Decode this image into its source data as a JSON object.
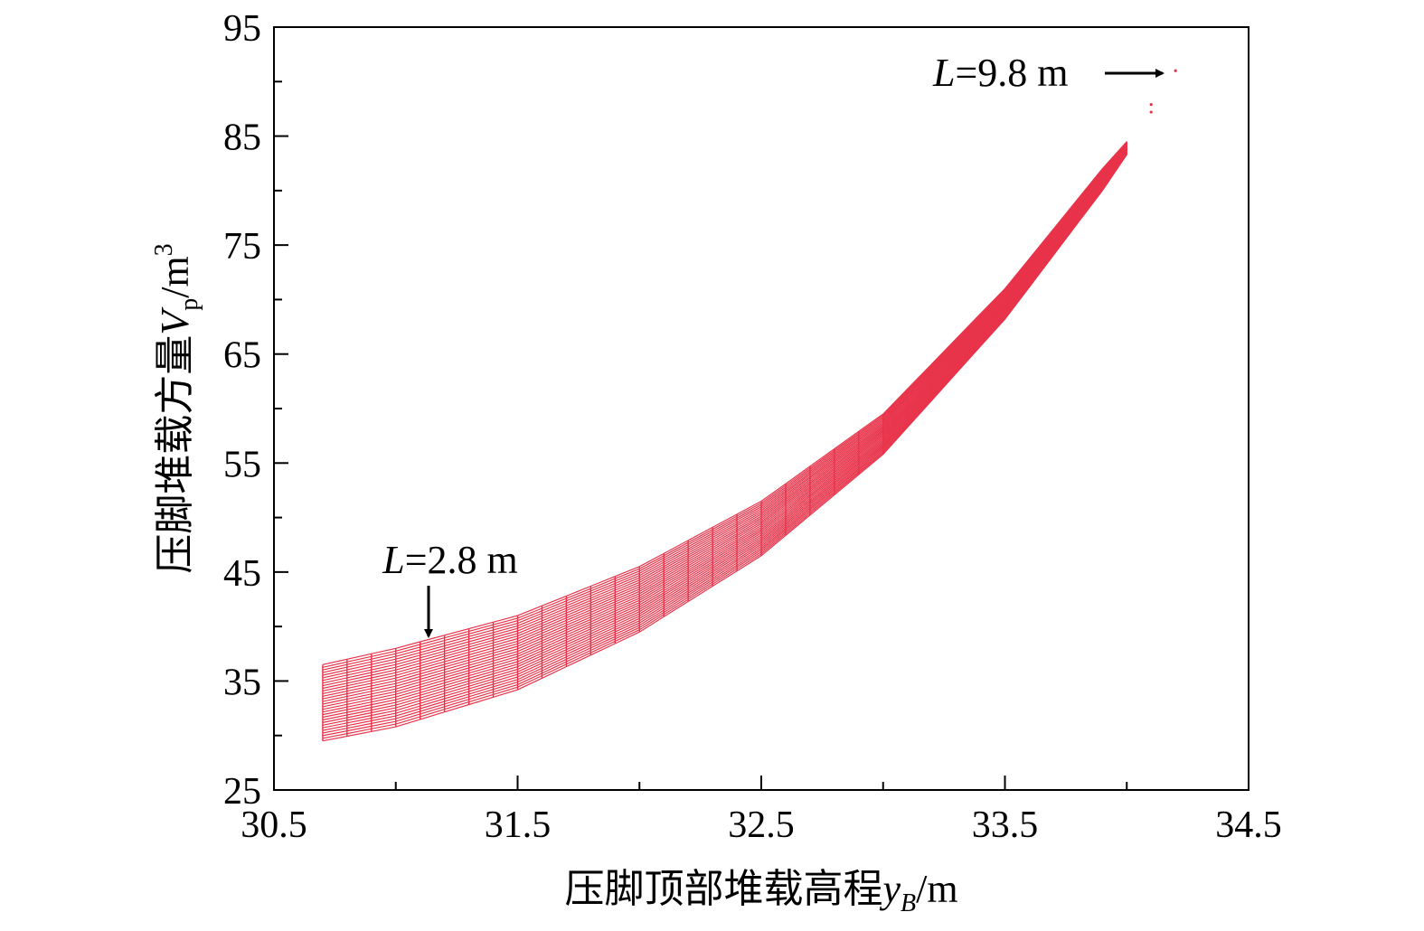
{
  "chart_data": {
    "type": "line",
    "x_axis": {
      "label_cn": "压脚顶部堆载高程",
      "label_var": "y",
      "label_sub": "B",
      "label_unit": "/m",
      "range": [
        30.5,
        34.5
      ],
      "ticks": [
        "30.5",
        "31.5",
        "32.5",
        "33.5",
        "34.5"
      ]
    },
    "y_axis": {
      "label_cn": "压脚堆载方量",
      "label_var": "V",
      "label_sub": "p",
      "label_unit": "/m",
      "label_sup": "3",
      "range": [
        25,
        95
      ],
      "ticks": [
        "25",
        "35",
        "45",
        "55",
        "65",
        "75",
        "85",
        "95"
      ]
    },
    "grid": false,
    "line_color": "#e8334a",
    "series_summary": {
      "x_start": 30.7,
      "x_step": 0.1,
      "x_end": 34.2,
      "upper_envelope": [
        [
          30.7,
          36.5
        ],
        [
          31.0,
          38.0
        ],
        [
          31.5,
          41.0
        ],
        [
          32.0,
          45.5
        ],
        [
          32.5,
          51.5
        ],
        [
          33.0,
          59.5
        ],
        [
          33.5,
          71.0
        ],
        [
          33.9,
          82.0
        ],
        [
          34.0,
          84.5
        ]
      ],
      "lower_envelope": [
        [
          30.7,
          29.5
        ],
        [
          31.0,
          30.8
        ],
        [
          31.5,
          34.2
        ],
        [
          32.0,
          39.5
        ],
        [
          32.5,
          46.5
        ],
        [
          33.0,
          55.8
        ],
        [
          33.5,
          68.2
        ],
        [
          33.9,
          80.0
        ],
        [
          34.0,
          83.3
        ]
      ],
      "isolated_points": [
        [
          34.1,
          87.2
        ],
        [
          34.1,
          87.9
        ],
        [
          34.2,
          91.0
        ]
      ]
    },
    "annotations": [
      {
        "var": "L",
        "text": "=2.8 m",
        "arrow": "down",
        "point": [
          31.15,
          38.8
        ]
      },
      {
        "var": "L",
        "text": "=9.8 m",
        "arrow": "right",
        "point": [
          34.2,
          91.0
        ]
      }
    ]
  }
}
